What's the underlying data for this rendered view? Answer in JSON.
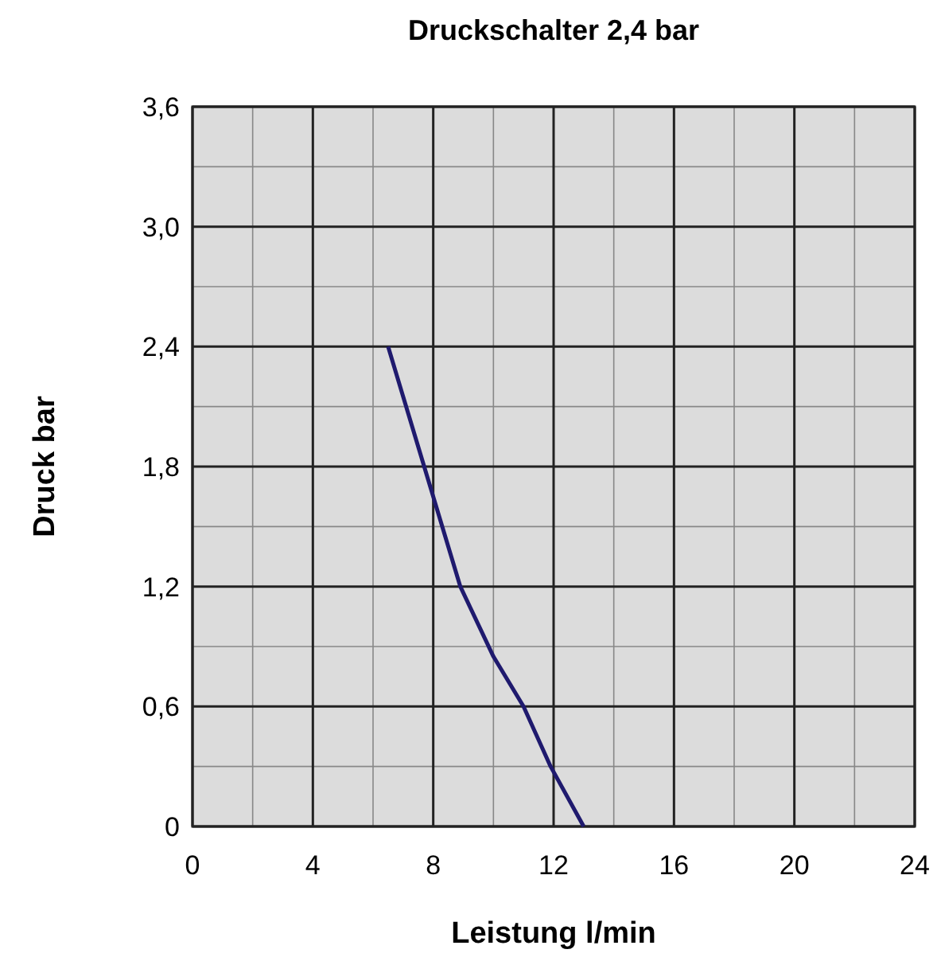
{
  "chart_data": {
    "type": "line",
    "title": "Druckschalter 2,4 bar",
    "xlabel": "Leistung l/min",
    "ylabel": "Druck bar",
    "x": [
      6.5,
      7.2,
      8.0,
      8.9,
      10.0,
      11.0,
      11.9,
      13.0
    ],
    "series": [
      {
        "color": "#1f1a6e",
        "values": [
          2.4,
          2.05,
          1.65,
          1.2,
          0.85,
          0.6,
          0.3,
          0
        ]
      }
    ],
    "xlim": [
      0,
      24
    ],
    "xticks": [
      0,
      4,
      8,
      12,
      16,
      20,
      24
    ],
    "ylim": [
      0,
      3.6
    ],
    "yticks": [
      0,
      {
        "value": 0.6,
        "label": "0,6"
      },
      {
        "value": 1.2,
        "label": "1,2"
      },
      {
        "value": 1.8,
        "label": "1,8"
      },
      {
        "value": 2.4,
        "label": "2,4"
      },
      {
        "value": 3.0,
        "label": "3,0"
      },
      {
        "value": 3.6,
        "label": "3,6"
      }
    ],
    "grid": true,
    "line_style": "solid",
    "marker": "none"
  }
}
